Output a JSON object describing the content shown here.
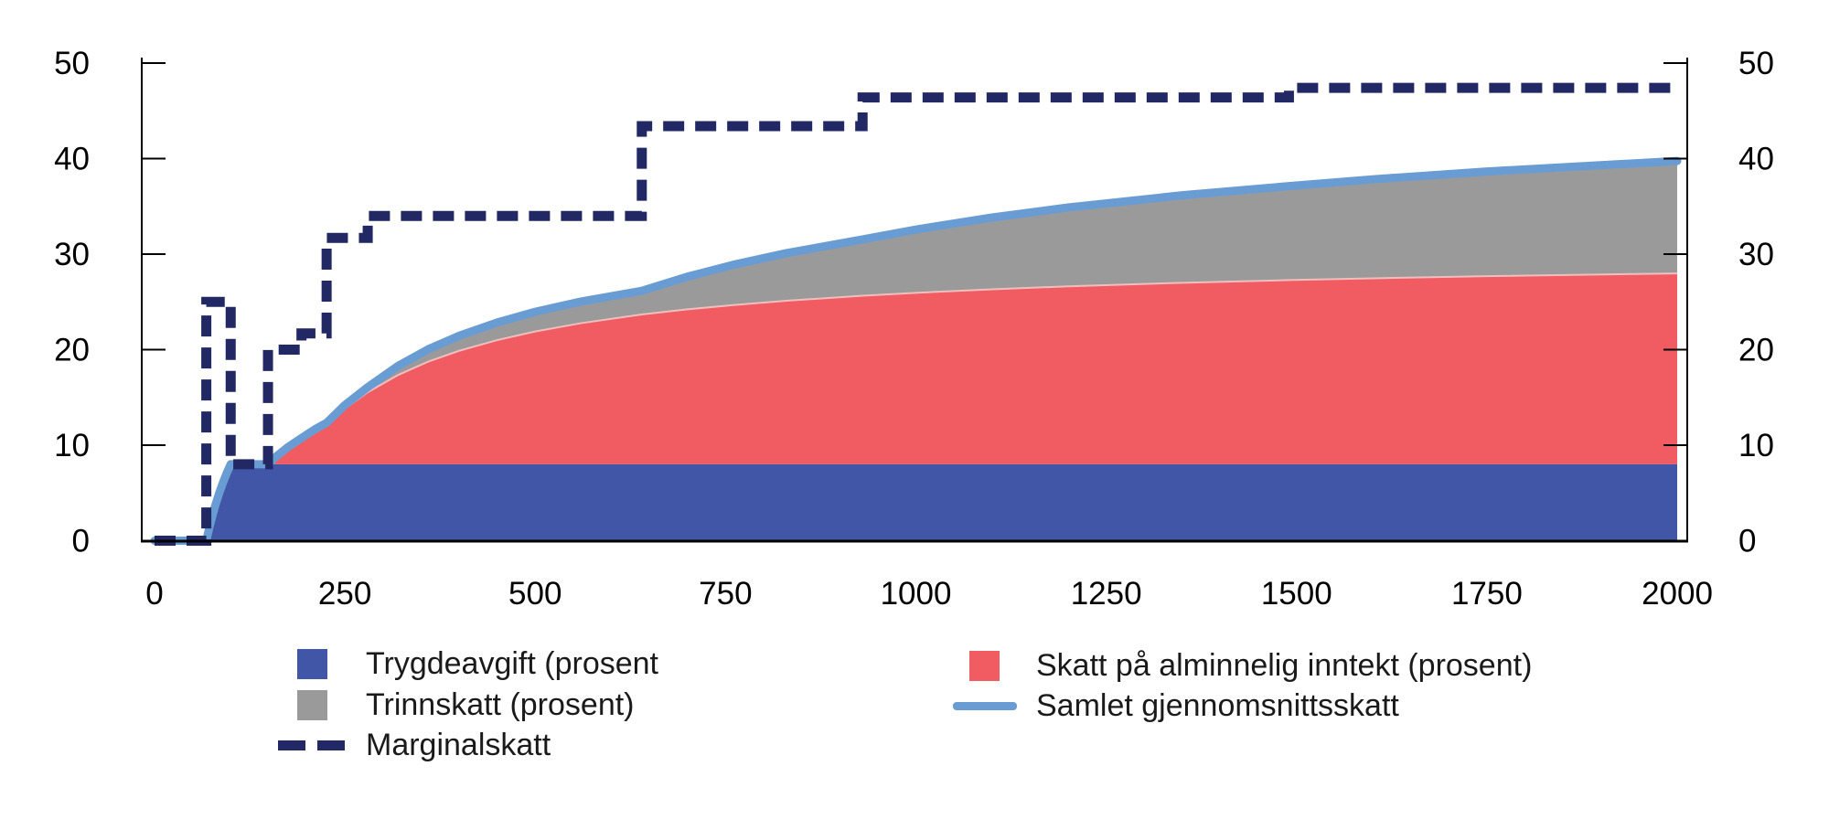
{
  "colors": {
    "trygdeavgift": "#4156A6",
    "alminnelig": "#F15C62",
    "alminnelig_edge": "#EFBFBF",
    "trinnskatt": "#9B9A9B",
    "marginalskatt": "#212863",
    "samlet": "#699CD3",
    "axis": "#000000",
    "tick_text": "#000000"
  },
  "legend": {
    "left": [
      {
        "label": "Trygdeavgift (prosent",
        "swatch": "square",
        "color_key": "trygdeavgift"
      },
      {
        "label": "Trinnskatt (prosent)",
        "swatch": "square",
        "color_key": "trinnskatt"
      },
      {
        "label": "Marginalskatt",
        "swatch": "dashes",
        "color_key": "marginalskatt"
      }
    ],
    "right": [
      {
        "label": "Skatt på alminnelig inntekt (prosent)",
        "swatch": "square",
        "color_key": "alminnelig"
      },
      {
        "label": "Samlet gjennomsnittsskatt",
        "swatch": "line",
        "color_key": "samlet"
      }
    ]
  },
  "chart_data": {
    "type": "area",
    "stacked": true,
    "title": "",
    "xlabel": "",
    "ylabel": "",
    "xlim": [
      0,
      2000
    ],
    "ylim": [
      0,
      50
    ],
    "x_ticks": [
      0,
      250,
      500,
      750,
      1000,
      1250,
      1500,
      1750,
      2000
    ],
    "y_ticks": [
      0,
      10,
      20,
      30,
      40,
      50
    ],
    "y_axis_sides": "both",
    "grid": false,
    "legend_position": "bottom",
    "x": [
      0,
      68,
      70,
      72,
      76,
      80,
      85,
      90,
      95,
      100,
      110,
      120,
      135,
      149,
      160,
      175,
      193,
      210,
      226,
      250,
      280,
      320,
      360,
      400,
      450,
      500,
      560,
      640,
      700,
      760,
      830,
      930,
      1000,
      1100,
      1200,
      1350,
      1490,
      1600,
      1750,
      2000
    ],
    "series": [
      {
        "name": "Trygdeavgift (prosent",
        "type": "area",
        "color_key": "trygdeavgift",
        "values": [
          0,
          0,
          0.71,
          1.39,
          2.63,
          3.75,
          5.0,
          6.11,
          7.11,
          8,
          8,
          8,
          8,
          8,
          8,
          8,
          8,
          8,
          8,
          8,
          8,
          8,
          8,
          8,
          8,
          8,
          8,
          8,
          8,
          8,
          8,
          8,
          8,
          8,
          8,
          8,
          8,
          8,
          8,
          8
        ]
      },
      {
        "name": "Skatt på alminnelig inntekt (prosent)",
        "type": "area",
        "color_key": "alminnelig",
        "values": [
          0,
          0,
          0,
          0,
          0,
          0,
          0,
          0,
          0,
          0,
          0,
          0,
          0,
          0,
          0.83,
          1.78,
          2.74,
          3.49,
          4.09,
          5.81,
          7.54,
          9.35,
          10.76,
          11.88,
          13.0,
          13.9,
          14.77,
          15.68,
          16.22,
          16.67,
          17.12,
          17.65,
          17.95,
          18.32,
          18.63,
          19.0,
          19.28,
          19.47,
          19.69,
          19.98
        ]
      },
      {
        "name": "Trinnskatt (prosent)",
        "type": "area",
        "color_key": "trinnskatt",
        "values": [
          0,
          0,
          0,
          0,
          0,
          0,
          0,
          0,
          0,
          0,
          0,
          0,
          0,
          0,
          0,
          0,
          0,
          0.14,
          0.25,
          0.39,
          0.53,
          0.96,
          1.3,
          1.57,
          1.84,
          2.06,
          2.26,
          2.48,
          3.42,
          4.21,
          4.98,
          5.89,
          6.62,
          7.51,
          8.25,
          9.16,
          9.84,
          10.36,
          10.96,
          11.77
        ]
      },
      {
        "name": "Samlet gjennomsnittsskatt",
        "type": "line",
        "color_key": "samlet",
        "values": [
          0,
          0,
          0.71,
          1.39,
          2.63,
          3.75,
          5.0,
          6.11,
          7.11,
          8,
          8,
          8,
          8,
          8,
          8.83,
          9.78,
          10.74,
          11.63,
          12.34,
          14.2,
          16.07,
          18.31,
          20.06,
          21.45,
          22.84,
          23.96,
          25.03,
          26.16,
          27.64,
          28.88,
          30.1,
          31.54,
          32.57,
          33.83,
          34.88,
          36.16,
          37.12,
          37.83,
          38.65,
          39.75
        ]
      },
      {
        "name": "Marginalskatt",
        "type": "step-line",
        "color_key": "marginalskatt",
        "steps": [
          {
            "x_from": 0,
            "x_to": 68,
            "rate": 0
          },
          {
            "x_from": 68,
            "x_to": 100,
            "rate": 25
          },
          {
            "x_from": 100,
            "x_to": 149,
            "rate": 8
          },
          {
            "x_from": 149,
            "x_to": 193,
            "rate": 20
          },
          {
            "x_from": 193,
            "x_to": 226,
            "rate": 21.7
          },
          {
            "x_from": 226,
            "x_to": 280,
            "rate": 31.7
          },
          {
            "x_from": 280,
            "x_to": 640,
            "rate": 34
          },
          {
            "x_from": 640,
            "x_to": 930,
            "rate": 43.4
          },
          {
            "x_from": 930,
            "x_to": 1490,
            "rate": 46.4
          },
          {
            "x_from": 1490,
            "x_to": 2000,
            "rate": 47.4
          }
        ]
      }
    ]
  }
}
